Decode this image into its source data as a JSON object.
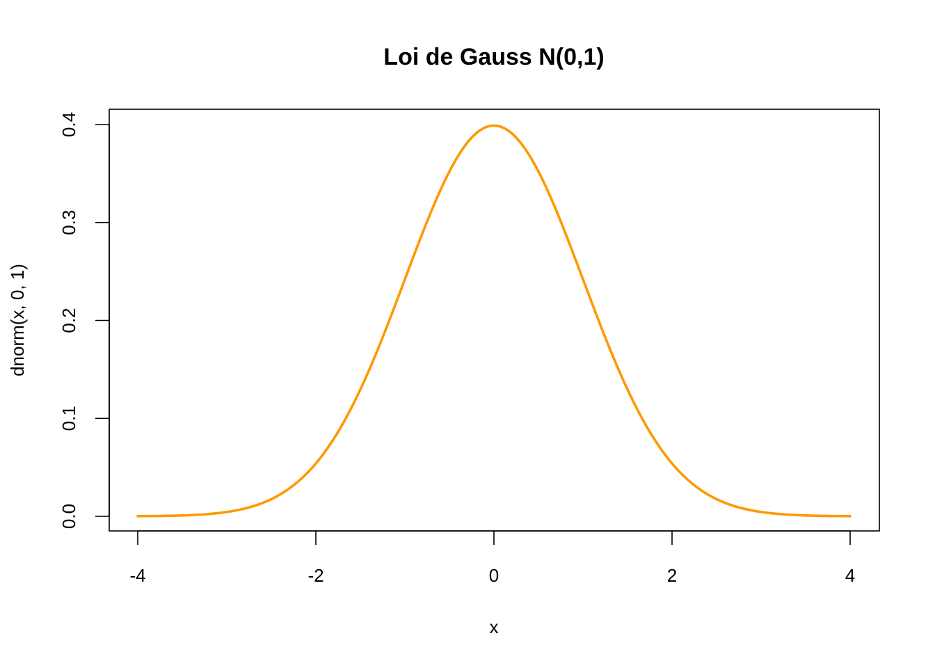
{
  "chart_data": {
    "type": "line",
    "title": "Loi de Gauss N(0,1)",
    "xlabel": "x",
    "ylabel": "dnorm(x, 0, 1)",
    "xlim": [
      -4,
      4
    ],
    "ylim": [
      0,
      0.4
    ],
    "x_ticks": [
      -4,
      -2,
      0,
      2,
      4
    ],
    "y_ticks": [
      0.0,
      0.1,
      0.2,
      0.3,
      0.4
    ],
    "x_tick_labels": [
      "-4",
      "-2",
      "0",
      "2",
      "4"
    ],
    "y_tick_labels": [
      "0.0",
      "0.1",
      "0.2",
      "0.3",
      "0.4"
    ],
    "grid": false,
    "series": [
      {
        "color": "#FF9900",
        "x": [
          -4,
          -3.5,
          -3,
          -2.5,
          -2,
          -1.75,
          -1.5,
          -1.25,
          -1,
          -0.75,
          -0.5,
          -0.25,
          0,
          0.25,
          0.5,
          0.75,
          1,
          1.25,
          1.5,
          1.75,
          2,
          2.5,
          3,
          3.5,
          4
        ],
        "y": [
          0.0001,
          0.0009,
          0.0044,
          0.0175,
          0.054,
          0.0863,
          0.1295,
          0.1826,
          0.242,
          0.3011,
          0.3521,
          0.3867,
          0.3989,
          0.3867,
          0.3521,
          0.3011,
          0.242,
          0.1826,
          0.1295,
          0.0863,
          0.054,
          0.0175,
          0.0044,
          0.0009,
          0.0001
        ]
      }
    ]
  }
}
